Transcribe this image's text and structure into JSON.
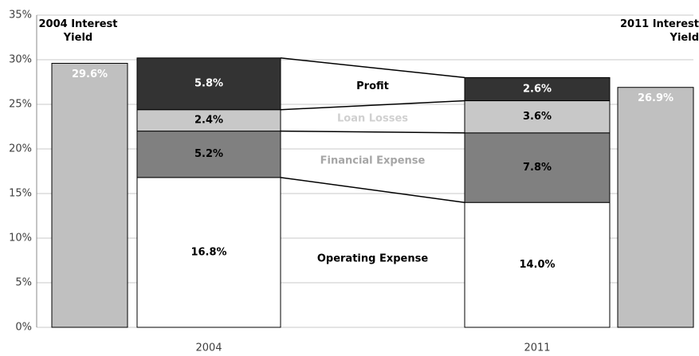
{
  "chart_data": {
    "type": "bar",
    "stacked": true,
    "categories": [
      "2004",
      "2011"
    ],
    "series": [
      {
        "name": "Operating Expense",
        "color": "#ffffff",
        "label_color": "#000000",
        "value_color": "#000000",
        "values": [
          16.8,
          14.0
        ],
        "value_labels": [
          "16.8%",
          "14.0%"
        ]
      },
      {
        "name": "Financial Expense",
        "color": "#808080",
        "label_color": "#a6a6a6",
        "value_color": "#000000",
        "values": [
          5.2,
          7.8
        ],
        "value_labels": [
          "5.2%",
          "7.8%"
        ]
      },
      {
        "name": "Loan Losses",
        "color": "#c8c8c8",
        "label_color": "#d0d0d0",
        "value_color": "#000000",
        "values": [
          2.4,
          3.6
        ],
        "value_labels": [
          "2.4%",
          "3.6%"
        ]
      },
      {
        "name": "Profit",
        "color": "#333333",
        "label_color": "#000000",
        "value_color": "#ffffff",
        "values": [
          5.8,
          2.6
        ],
        "value_labels": [
          "5.8%",
          "2.6%"
        ]
      }
    ],
    "yield_bars": [
      {
        "label": "2004 Interest Yield",
        "value": 29.6,
        "value_label": "29.6%",
        "color": "#c0c0c0"
      },
      {
        "label": "2011 Interest Yield",
        "value": 26.9,
        "value_label": "26.9%",
        "color": "#c0c0c0"
      }
    ],
    "ylim": [
      0,
      35
    ],
    "yticks": [
      {
        "value": 0,
        "label": "0%"
      },
      {
        "value": 5,
        "label": "5%"
      },
      {
        "value": 10,
        "label": "10%"
      },
      {
        "value": 15,
        "label": "15%"
      },
      {
        "value": 20,
        "label": "20%"
      },
      {
        "value": 25,
        "label": "25%"
      },
      {
        "value": 30,
        "label": "30%"
      },
      {
        "value": 35,
        "label": "35%"
      }
    ],
    "grid": true
  }
}
